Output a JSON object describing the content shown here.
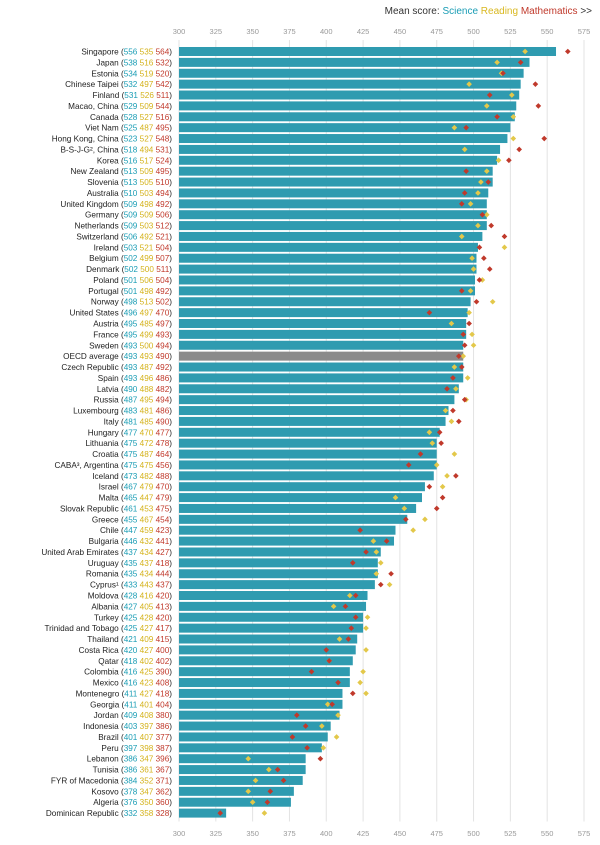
{
  "legend": {
    "prefix": "Mean score:",
    "science": "Science",
    "reading": "Reading",
    "mathematics": "Mathematics",
    "suffix": ">>"
  },
  "colors": {
    "bar": "#2f9bb0",
    "oecd_bar": "#8a8a8a",
    "science": "#1a9db5",
    "reading": "#e3c84a",
    "mathematics": "#c0392b",
    "grid": "#e3e3e3",
    "label": "#222222",
    "tick": "#999999"
  },
  "chart_data": {
    "type": "bar",
    "orientation": "horizontal",
    "xlim": [
      300,
      575
    ],
    "x_ticks": [
      300,
      325,
      350,
      375,
      400,
      425,
      450,
      475,
      500,
      525,
      550,
      575
    ],
    "x_tick_labels": [
      "300",
      "325",
      "350",
      "375",
      "400",
      "425",
      "450",
      "475",
      "500",
      "525",
      "550",
      "575"
    ],
    "grid": true,
    "legend_position": "top-right",
    "bar_series": "Science",
    "marker_series": [
      "Reading",
      "Mathematics"
    ],
    "rows": [
      {
        "label": "Singapore",
        "science": "556",
        "reading": "535",
        "math": "564",
        "s": 556,
        "r": 535,
        "m": 564
      },
      {
        "label": "Japan",
        "science": "538",
        "reading": "516",
        "math": "532",
        "s": 538,
        "r": 516,
        "m": 532
      },
      {
        "label": "Estonia",
        "science": "534",
        "reading": "519",
        "math": "520",
        "s": 534,
        "r": 519,
        "m": 520
      },
      {
        "label": "Chinese Taipei",
        "science": "532",
        "reading": "497",
        "math": "542",
        "s": 532,
        "r": 497,
        "m": 542
      },
      {
        "label": "Finland",
        "science": "531",
        "reading": "526",
        "math": "511",
        "s": 531,
        "r": 526,
        "m": 511
      },
      {
        "label": "Macao, China",
        "science": "529",
        "reading": "509",
        "math": "544",
        "s": 529,
        "r": 509,
        "m": 544
      },
      {
        "label": "Canada",
        "science": "528",
        "reading": "527",
        "math": "516",
        "s": 528,
        "r": 527,
        "m": 516
      },
      {
        "label": "Viet Nam",
        "science": "525",
        "reading": "487",
        "math": "495",
        "s": 525,
        "r": 487,
        "m": 495
      },
      {
        "label": "Hong Kong, China",
        "science": "523",
        "reading": "527",
        "math": "548",
        "s": 523,
        "r": 527,
        "m": 548
      },
      {
        "label": "B-S-J-G², China",
        "science": "518",
        "reading": "494",
        "math": "531",
        "s": 518,
        "r": 494,
        "m": 531
      },
      {
        "label": "Korea",
        "science": "516",
        "reading": "517",
        "math": "524",
        "s": 516,
        "r": 517,
        "m": 524
      },
      {
        "label": "New Zealand",
        "science": "513",
        "reading": "509",
        "math": "495",
        "s": 513,
        "r": 509,
        "m": 495
      },
      {
        "label": "Slovenia",
        "science": "513",
        "reading": "505",
        "math": "510",
        "s": 513,
        "r": 505,
        "m": 510
      },
      {
        "label": "Australia",
        "science": "510",
        "reading": "503",
        "math": "494",
        "s": 510,
        "r": 503,
        "m": 494
      },
      {
        "label": "United Kingdom",
        "science": "509",
        "reading": "498",
        "math": "492",
        "s": 509,
        "r": 498,
        "m": 492
      },
      {
        "label": "Germany",
        "science": "509",
        "reading": "509",
        "math": "506",
        "s": 509,
        "r": 509,
        "m": 506
      },
      {
        "label": "Netherlands",
        "science": "509",
        "reading": "503",
        "math": "512",
        "s": 509,
        "r": 503,
        "m": 512
      },
      {
        "label": "Switzerland",
        "science": "506",
        "reading": "492",
        "math": "521",
        "s": 506,
        "r": 492,
        "m": 521
      },
      {
        "label": "Ireland",
        "science": "503",
        "reading": "521",
        "math": "504",
        "s": 503,
        "r": 521,
        "m": 504
      },
      {
        "label": "Belgium",
        "science": "502",
        "reading": "499",
        "math": "507",
        "s": 502,
        "r": 499,
        "m": 507
      },
      {
        "label": "Denmark",
        "science": "502",
        "reading": "500",
        "math": "511",
        "s": 502,
        "r": 500,
        "m": 511
      },
      {
        "label": "Poland",
        "science": "501",
        "reading": "506",
        "math": "504",
        "s": 501,
        "r": 506,
        "m": 504
      },
      {
        "label": "Portugal",
        "science": "501",
        "reading": "498",
        "math": "492",
        "s": 501,
        "r": 498,
        "m": 492
      },
      {
        "label": "Norway",
        "science": "498",
        "reading": "513",
        "math": "502",
        "s": 498,
        "r": 513,
        "m": 502
      },
      {
        "label": "United States",
        "science": "496",
        "reading": "497",
        "math": "470",
        "s": 496,
        "r": 497,
        "m": 470
      },
      {
        "label": "Austria",
        "science": "495",
        "reading": "485",
        "math": "497",
        "s": 495,
        "r": 485,
        "m": 497
      },
      {
        "label": "France",
        "science": "495",
        "reading": "499",
        "math": "493",
        "s": 495,
        "r": 499,
        "m": 493
      },
      {
        "label": "Sweden",
        "science": "493",
        "reading": "500",
        "math": "494",
        "s": 493,
        "r": 500,
        "m": 494
      },
      {
        "label": "OECD average",
        "science": "493",
        "reading": "493",
        "math": "490",
        "s": 493,
        "r": 493,
        "m": 490,
        "oecd": true
      },
      {
        "label": "Czech Republic",
        "science": "493",
        "reading": "487",
        "math": "492",
        "s": 493,
        "r": 487,
        "m": 492
      },
      {
        "label": "Spain",
        "science": "493",
        "reading": "496",
        "math": "486",
        "s": 493,
        "r": 496,
        "m": 486
      },
      {
        "label": "Latvia",
        "science": "490",
        "reading": "488",
        "math": "482",
        "s": 490,
        "r": 488,
        "m": 482
      },
      {
        "label": "Russia",
        "science": "487",
        "reading": "495",
        "math": "494",
        "s": 487,
        "r": 495,
        "m": 494
      },
      {
        "label": "Luxembourg",
        "science": "483",
        "reading": "481",
        "math": "486",
        "s": 483,
        "r": 481,
        "m": 486
      },
      {
        "label": "Italy",
        "science": "481",
        "reading": "485",
        "math": "490",
        "s": 481,
        "r": 485,
        "m": 490
      },
      {
        "label": "Hungary",
        "science": "477",
        "reading": "470",
        "math": "477",
        "s": 477,
        "r": 470,
        "m": 477
      },
      {
        "label": "Lithuania",
        "science": "475",
        "reading": "472",
        "math": "478",
        "s": 475,
        "r": 472,
        "m": 478
      },
      {
        "label": "Croatia",
        "science": "475",
        "reading": "487",
        "math": "464",
        "s": 475,
        "r": 487,
        "m": 464
      },
      {
        "label": "CABA³, Argentina",
        "science": "475",
        "reading": "475",
        "math": "456",
        "s": 475,
        "r": 475,
        "m": 456
      },
      {
        "label": "Iceland",
        "science": "473",
        "reading": "482",
        "math": "488",
        "s": 473,
        "r": 482,
        "m": 488
      },
      {
        "label": "Israel",
        "science": "467",
        "reading": "479",
        "math": "470",
        "s": 467,
        "r": 479,
        "m": 470
      },
      {
        "label": "Malta",
        "science": "465",
        "reading": "447",
        "math": "479",
        "s": 465,
        "r": 447,
        "m": 479
      },
      {
        "label": "Slovak Republic",
        "science": "461",
        "reading": "453",
        "math": "475",
        "s": 461,
        "r": 453,
        "m": 475
      },
      {
        "label": "Greece",
        "science": "455",
        "reading": "467",
        "math": "454",
        "s": 455,
        "r": 467,
        "m": 454
      },
      {
        "label": "Chile",
        "science": "447",
        "reading": "459",
        "math": "423",
        "s": 447,
        "r": 459,
        "m": 423
      },
      {
        "label": "Bulgaria",
        "science": "446",
        "reading": "432",
        "math": "441",
        "s": 446,
        "r": 432,
        "m": 441
      },
      {
        "label": "United Arab Emirates",
        "science": "437",
        "reading": "434",
        "math": "427",
        "s": 437,
        "r": 434,
        "m": 427
      },
      {
        "label": "Uruguay",
        "science": "435",
        "reading": "437",
        "math": "418",
        "s": 435,
        "r": 437,
        "m": 418
      },
      {
        "label": "Romania",
        "science": "435",
        "reading": "434",
        "math": "444",
        "s": 435,
        "r": 434,
        "m": 444
      },
      {
        "label": "Cyprus¹",
        "science": "433",
        "reading": "443",
        "math": "437",
        "s": 433,
        "r": 443,
        "m": 437
      },
      {
        "label": "Moldova",
        "science": "428",
        "reading": "416",
        "math": "420",
        "s": 428,
        "r": 416,
        "m": 420
      },
      {
        "label": "Albania",
        "science": "427",
        "reading": "405",
        "math": "413",
        "s": 427,
        "r": 405,
        "m": 413
      },
      {
        "label": "Turkey",
        "science": "425",
        "reading": "428",
        "math": "420",
        "s": 425,
        "r": 428,
        "m": 420
      },
      {
        "label": "Trinidad and Tobago",
        "science": "425",
        "reading": "427",
        "math": "417",
        "s": 425,
        "r": 427,
        "m": 417
      },
      {
        "label": "Thailand",
        "science": "421",
        "reading": "409",
        "math": "415",
        "s": 421,
        "r": 409,
        "m": 415
      },
      {
        "label": "Costa Rica",
        "science": "420",
        "reading": "427",
        "math": "400",
        "s": 420,
        "r": 427,
        "m": 400
      },
      {
        "label": "Qatar",
        "science": "418",
        "reading": "402",
        "math": "402",
        "s": 418,
        "r": 402,
        "m": 402
      },
      {
        "label": "Colombia",
        "science": "416",
        "reading": "425",
        "math": "390",
        "s": 416,
        "r": 425,
        "m": 390
      },
      {
        "label": "Mexico",
        "science": "416",
        "reading": "423",
        "math": "408",
        "s": 416,
        "r": 423,
        "m": 408
      },
      {
        "label": "Montenegro",
        "science": "411",
        "reading": "427",
        "math": "418",
        "s": 411,
        "r": 427,
        "m": 418
      },
      {
        "label": "Georgia",
        "science": "411",
        "reading": "401",
        "math": "404",
        "s": 411,
        "r": 401,
        "m": 404
      },
      {
        "label": "Jordan",
        "science": "409",
        "reading": "408",
        "math": "380",
        "s": 409,
        "r": 408,
        "m": 380
      },
      {
        "label": "Indonesia",
        "science": "403",
        "reading": "397",
        "math": "386",
        "s": 403,
        "r": 397,
        "m": 386
      },
      {
        "label": "Brazil",
        "science": "401",
        "reading": "407",
        "math": "377",
        "s": 401,
        "r": 407,
        "m": 377
      },
      {
        "label": "Peru",
        "science": "397",
        "reading": "398",
        "math": "387",
        "s": 397,
        "r": 398,
        "m": 387
      },
      {
        "label": "Lebanon",
        "science": "386",
        "reading": "347",
        "math": "396",
        "s": 386,
        "r": 347,
        "m": 396
      },
      {
        "label": "Tunisia",
        "science": "386",
        "reading": "361",
        "math": "367",
        "s": 386,
        "r": 361,
        "m": 367
      },
      {
        "label": "FYR of Macedonia",
        "science": "384",
        "reading": "352",
        "math": "371",
        "s": 384,
        "r": 352,
        "m": 371
      },
      {
        "label": "Kosovo",
        "science": "378",
        "reading": "347",
        "math": "362",
        "s": 378,
        "r": 347,
        "m": 362
      },
      {
        "label": "Algeria",
        "science": "376",
        "reading": "350",
        "math": "360",
        "s": 376,
        "r": 350,
        "m": 360
      },
      {
        "label": "Dominican Republic",
        "science": "332",
        "reading": "358",
        "math": "328",
        "s": 332,
        "r": 358,
        "m": 328
      }
    ]
  }
}
